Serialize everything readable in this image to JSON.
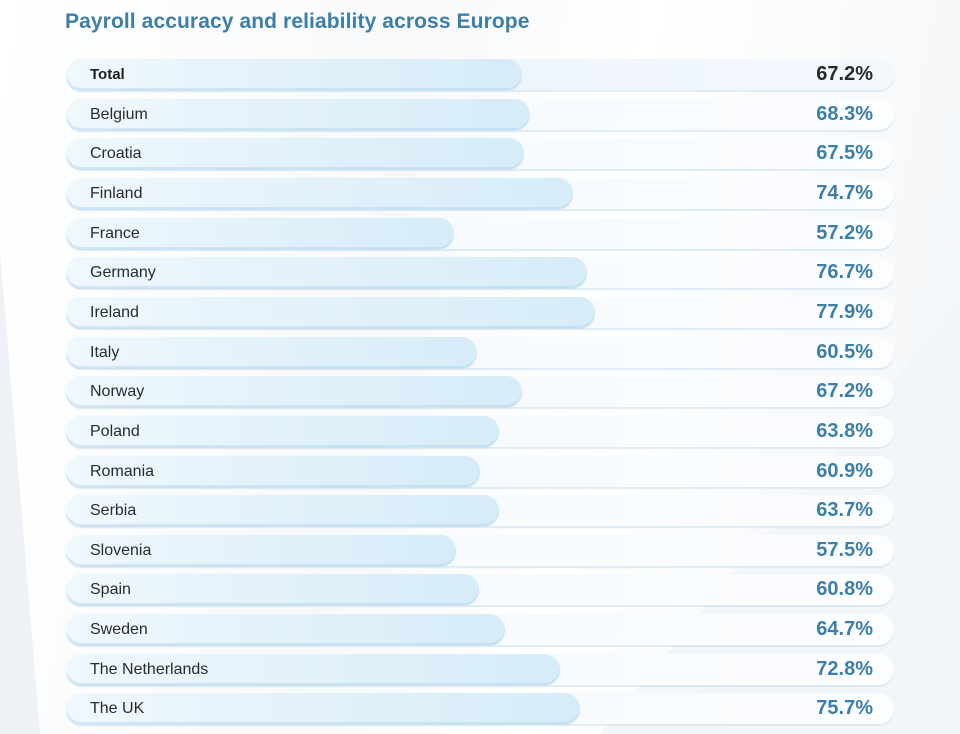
{
  "chart_data": {
    "type": "bar",
    "orientation": "horizontal",
    "title": "Payroll accuracy and reliability across Europe",
    "categories": [
      "Total",
      "Belgium",
      "Croatia",
      "Finland",
      "France",
      "Germany",
      "Ireland",
      "Italy",
      "Norway",
      "Poland",
      "Romania",
      "Serbia",
      "Slovenia",
      "Spain",
      "Sweden",
      "The Netherlands",
      "The UK"
    ],
    "values": [
      67.2,
      68.3,
      67.5,
      74.7,
      57.2,
      76.7,
      77.9,
      60.5,
      67.2,
      63.8,
      60.9,
      63.7,
      57.5,
      60.8,
      64.7,
      72.8,
      75.7
    ],
    "value_labels": [
      "67.2%",
      "68.3%",
      "67.5%",
      "74.7%",
      "57.2%",
      "76.7%",
      "77.9%",
      "60.5%",
      "67.2%",
      "63.8%",
      "60.9%",
      "63.7%",
      "57.5%",
      "60.8%",
      "64.7%",
      "72.8%",
      "75.7%"
    ],
    "unit": "%",
    "xlabel": "",
    "ylabel": "",
    "grid": false,
    "legend": "none",
    "highlight_first": true
  },
  "colors": {
    "title": "#3d7fa8",
    "value": "#3d7fa8",
    "total_value": "#2a2a2a",
    "label": "#2b2b2b"
  }
}
